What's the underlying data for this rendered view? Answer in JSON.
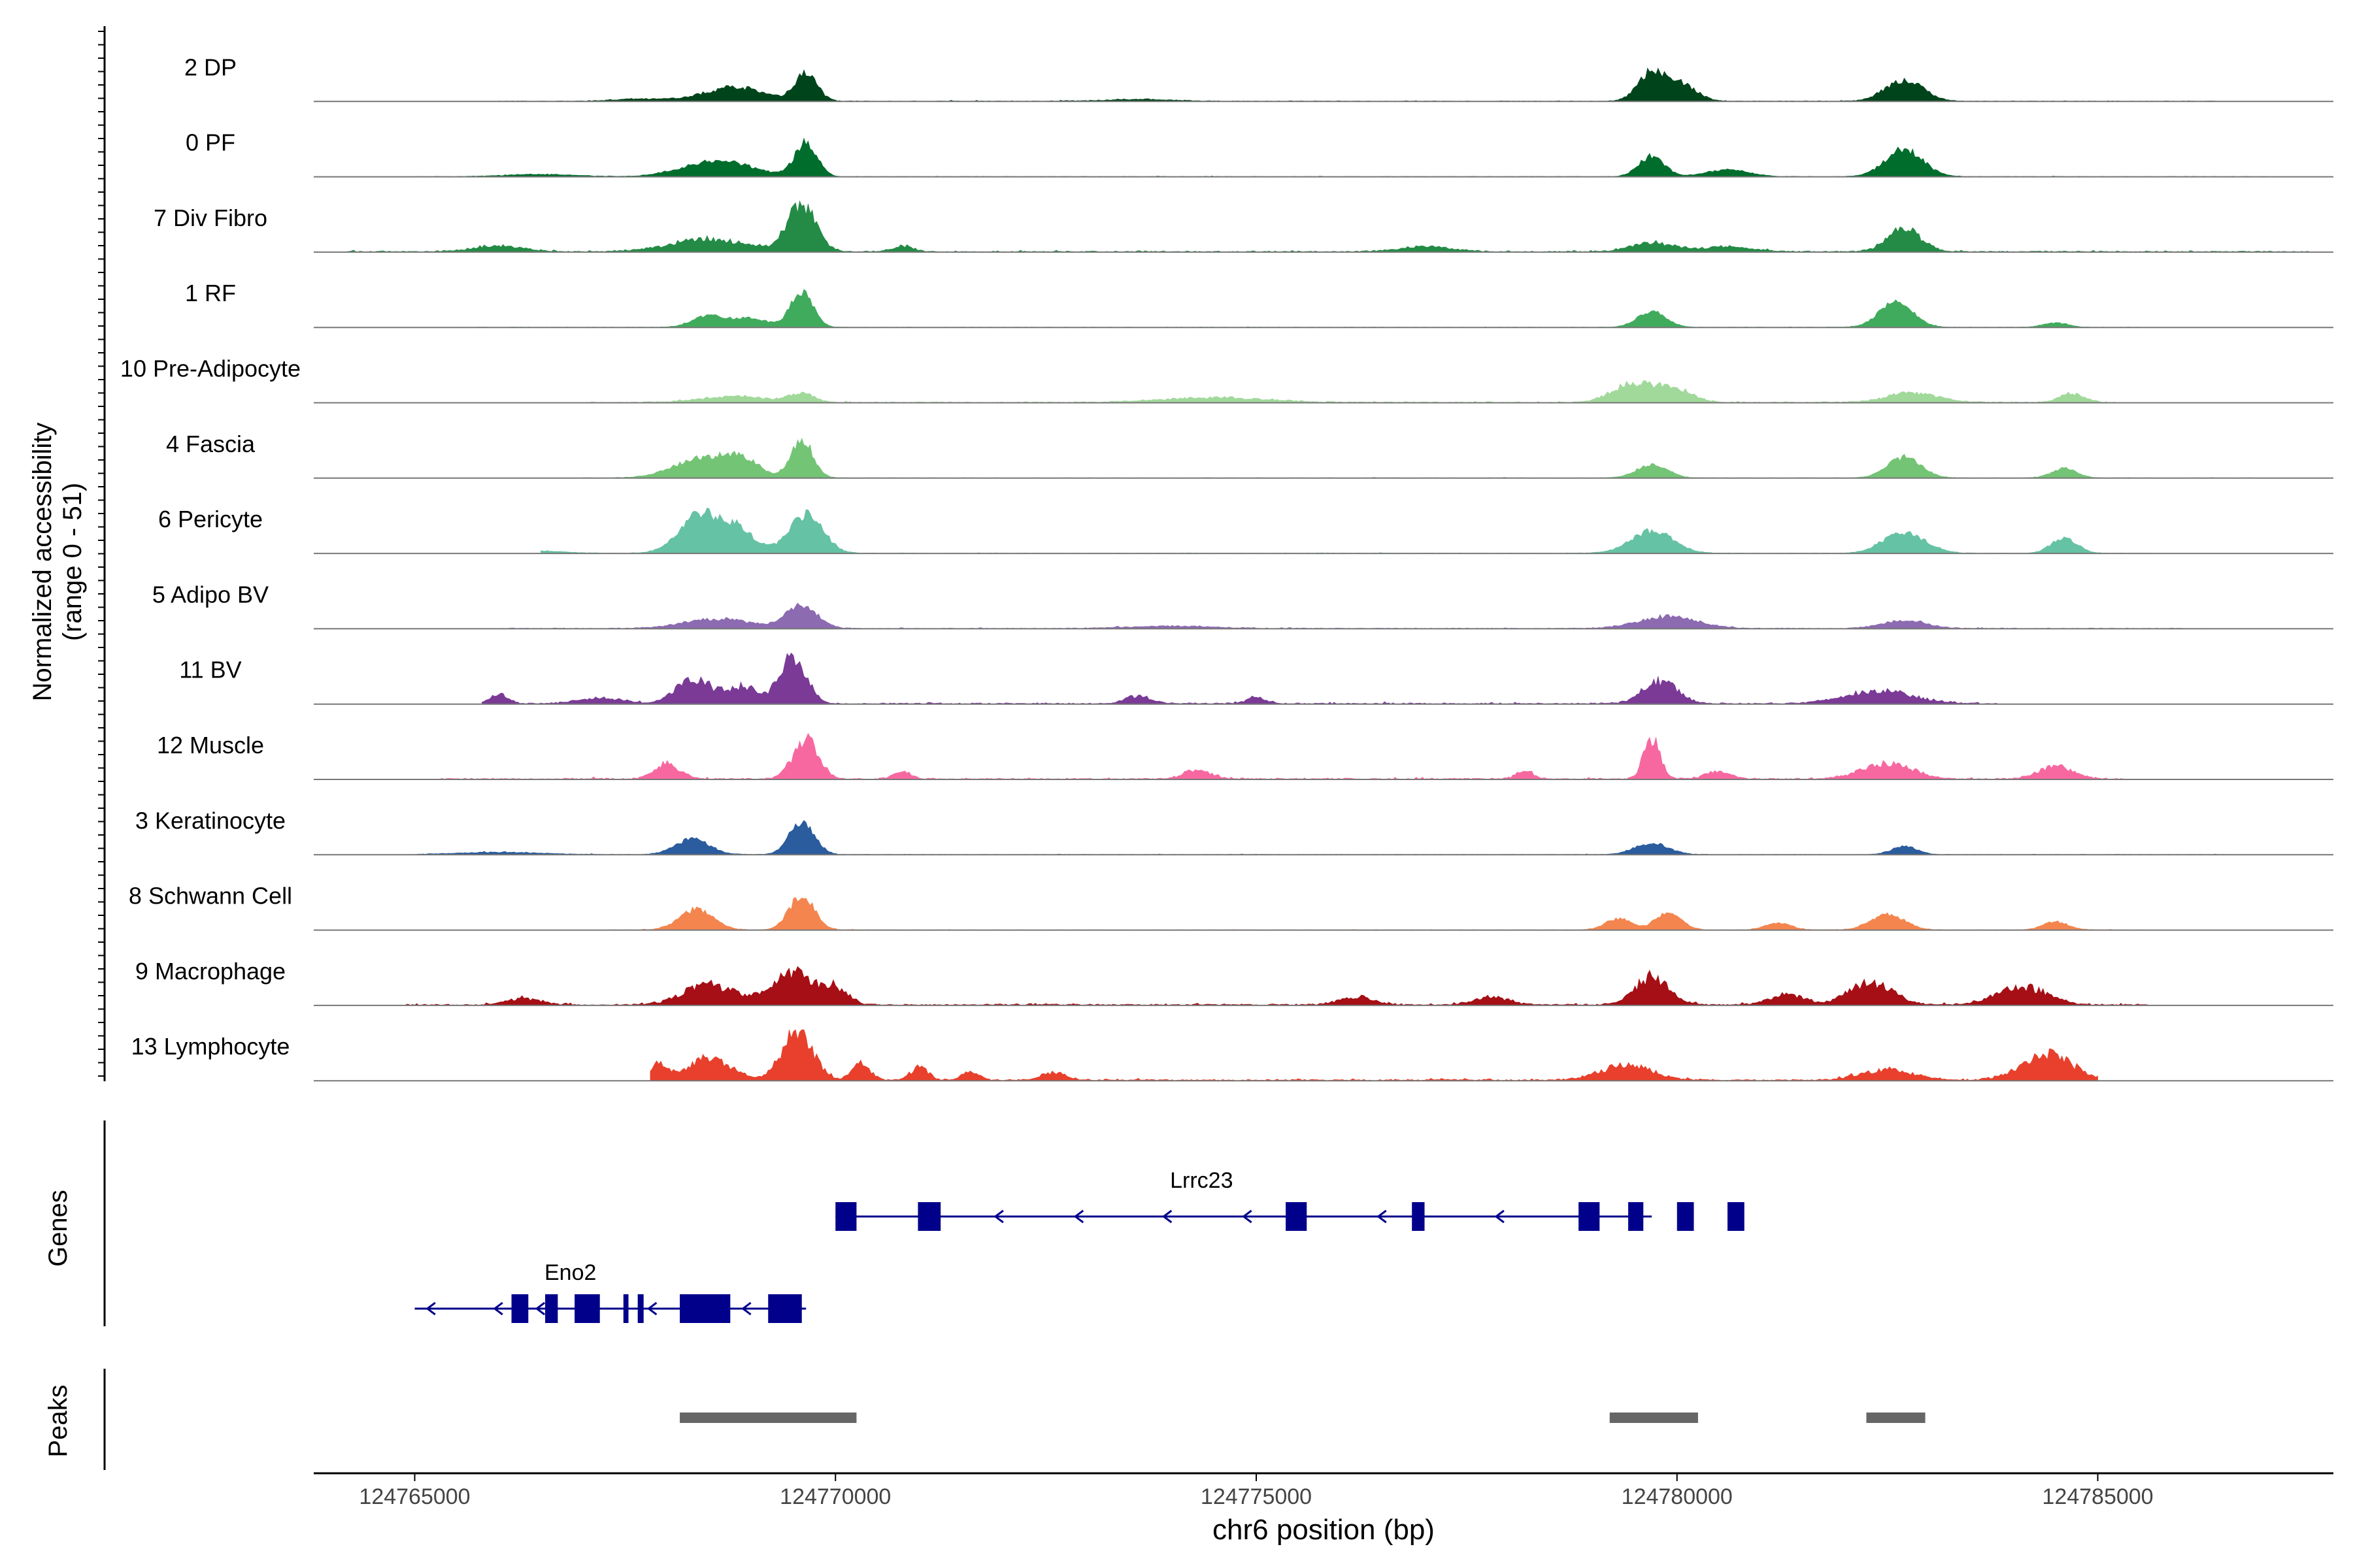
{
  "chart_data": {
    "type": "area",
    "title": "",
    "xlabel": "chr6 position (bp)",
    "ylabel_line1": "Normalized accessibility",
    "ylabel_line2": "(range 0 - 51)",
    "ylim": [
      0,
      51
    ],
    "xlim": [
      124763800,
      124787800
    ],
    "x_ticks": [
      124765000,
      124770000,
      124775000,
      124780000,
      124785000
    ],
    "x_tick_labels": [
      "124765000",
      "124770000",
      "124775000",
      "124780000",
      "124785000"
    ],
    "panel_labels": {
      "genes": "Genes",
      "peaks": "Peaks"
    },
    "tracks": [
      {
        "name": "2 DP",
        "color": "#00441b",
        "lo": 124766000,
        "hi": 124786400,
        "noise": 0.45,
        "peaks": [
          [
            124768800,
            350,
            0.3
          ],
          [
            124769650,
            130,
            0.6
          ],
          [
            124779700,
            160,
            0.6
          ],
          [
            124780050,
            180,
            0.35
          ],
          [
            124782700,
            220,
            0.45
          ],
          [
            124767700,
            300,
            0.05
          ],
          [
            124773600,
            400,
            0.04
          ]
        ]
      },
      {
        "name": "0 PF",
        "color": "#006d2c",
        "lo": 124765000,
        "hi": 124787000,
        "noise": 0.35,
        "peaks": [
          [
            124768600,
            400,
            0.35
          ],
          [
            124769650,
            130,
            0.75
          ],
          [
            124779700,
            150,
            0.45
          ],
          [
            124782700,
            220,
            0.6
          ],
          [
            124780600,
            250,
            0.15
          ],
          [
            124766500,
            400,
            0.05
          ]
        ]
      },
      {
        "name": "7 Div Fibro",
        "color": "#238b45",
        "lo": 124764200,
        "hi": 124787500,
        "noise": 0.7,
        "peaks": [
          [
            124766000,
            300,
            0.12
          ],
          [
            124768500,
            450,
            0.25
          ],
          [
            124769600,
            170,
            0.9
          ],
          [
            124770800,
            120,
            0.12
          ],
          [
            124777000,
            300,
            0.1
          ],
          [
            124779700,
            250,
            0.18
          ],
          [
            124782700,
            200,
            0.45
          ],
          [
            124780600,
            300,
            0.1
          ]
        ]
      },
      {
        "name": "1 RF",
        "color": "#41ab5d",
        "lo": 124765500,
        "hi": 124785500,
        "noise": 0.3,
        "peaks": [
          [
            124768500,
            200,
            0.25
          ],
          [
            124769600,
            130,
            0.8
          ],
          [
            124779700,
            170,
            0.35
          ],
          [
            124782600,
            200,
            0.55
          ],
          [
            124784500,
            150,
            0.1
          ],
          [
            124769000,
            200,
            0.2
          ]
        ]
      },
      {
        "name": "10 Pre-Adipocyte",
        "color": "#a1d99b",
        "lo": 124767000,
        "hi": 124785200,
        "noise": 0.6,
        "peaks": [
          [
            124768800,
            400,
            0.12
          ],
          [
            124774500,
            600,
            0.1
          ],
          [
            124779500,
            250,
            0.4
          ],
          [
            124780000,
            200,
            0.25
          ],
          [
            124782800,
            300,
            0.2
          ],
          [
            124784700,
            150,
            0.18
          ],
          [
            124769600,
            150,
            0.18
          ]
        ]
      },
      {
        "name": "4 Fascia",
        "color": "#74c476",
        "lo": 124767000,
        "hi": 124787000,
        "noise": 0.35,
        "peaks": [
          [
            124768450,
            350,
            0.45
          ],
          [
            124769600,
            130,
            0.85
          ],
          [
            124779700,
            180,
            0.3
          ],
          [
            124782700,
            200,
            0.45
          ],
          [
            124784600,
            150,
            0.2
          ],
          [
            124768900,
            200,
            0.3
          ]
        ]
      },
      {
        "name": "6 Pericyte",
        "color": "#66c2a4",
        "lo": 124766500,
        "hi": 124785600,
        "noise": 0.35,
        "peaks": [
          [
            124768400,
            250,
            0.85
          ],
          [
            124768850,
            200,
            0.45
          ],
          [
            124769650,
            200,
            0.85
          ],
          [
            124779700,
            250,
            0.5
          ],
          [
            124782700,
            250,
            0.45
          ],
          [
            124784600,
            150,
            0.35
          ],
          [
            124766500,
            300,
            0.05
          ]
        ]
      },
      {
        "name": "5 Adipo BV",
        "color": "#8c6bb1",
        "lo": 124766000,
        "hi": 124786300,
        "noise": 0.5,
        "peaks": [
          [
            124768600,
            400,
            0.2
          ],
          [
            124769600,
            180,
            0.5
          ],
          [
            124779900,
            350,
            0.25
          ],
          [
            124782700,
            250,
            0.18
          ],
          [
            124774000,
            500,
            0.05
          ]
        ]
      },
      {
        "name": "11 BV",
        "color": "#7a3a96",
        "lo": 124765800,
        "hi": 124783800,
        "noise": 0.75,
        "peaks": [
          [
            124768300,
            200,
            0.5
          ],
          [
            124768900,
            200,
            0.35
          ],
          [
            124769500,
            150,
            0.95
          ],
          [
            124779800,
            200,
            0.45
          ],
          [
            124782400,
            400,
            0.25
          ],
          [
            124766000,
            100,
            0.18
          ],
          [
            124775000,
            100,
            0.15
          ],
          [
            124767200,
            250,
            0.12
          ],
          [
            124773600,
            150,
            0.15
          ]
        ]
      },
      {
        "name": "12 Muscle",
        "color": "#f768a1",
        "lo": 124765300,
        "hi": 124785300,
        "noise": 0.75,
        "peaks": [
          [
            124768000,
            150,
            0.3
          ],
          [
            124769650,
            150,
            0.8
          ],
          [
            124779700,
            100,
            0.75
          ],
          [
            124782500,
            300,
            0.3
          ],
          [
            124784500,
            200,
            0.25
          ],
          [
            124774300,
            150,
            0.2
          ],
          [
            124770800,
            100,
            0.15
          ],
          [
            124778200,
            100,
            0.15
          ],
          [
            124780500,
            150,
            0.15
          ]
        ]
      },
      {
        "name": "3 Keratinocyte",
        "color": "#2a5c9e",
        "lo": 124765000,
        "hi": 124786500,
        "noise": 0.35,
        "peaks": [
          [
            124768300,
            200,
            0.35
          ],
          [
            124769600,
            150,
            0.7
          ],
          [
            124779700,
            200,
            0.25
          ],
          [
            124782700,
            150,
            0.18
          ],
          [
            124766000,
            500,
            0.05
          ]
        ]
      },
      {
        "name": "8 Schwann Cell",
        "color": "#f4854f",
        "lo": 124767300,
        "hi": 124785500,
        "noise": 0.35,
        "peaks": [
          [
            124768350,
            200,
            0.45
          ],
          [
            124769600,
            150,
            0.75
          ],
          [
            124779300,
            150,
            0.25
          ],
          [
            124779900,
            150,
            0.4
          ],
          [
            124782500,
            200,
            0.35
          ],
          [
            124784500,
            150,
            0.18
          ],
          [
            124781200,
            150,
            0.15
          ]
        ]
      },
      {
        "name": "9 Macrophage",
        "color": "#a50f15",
        "lo": 124764900,
        "hi": 124785600,
        "noise": 0.85,
        "peaks": [
          [
            124768500,
            300,
            0.4
          ],
          [
            124769500,
            250,
            0.6
          ],
          [
            124779700,
            200,
            0.55
          ],
          [
            124782300,
            250,
            0.45
          ],
          [
            124784100,
            300,
            0.35
          ],
          [
            124766300,
            200,
            0.12
          ],
          [
            124777800,
            200,
            0.15
          ],
          [
            124776200,
            200,
            0.15
          ],
          [
            124770000,
            150,
            0.3
          ],
          [
            124781300,
            200,
            0.2
          ]
        ]
      },
      {
        "name": "13 Lymphocyte",
        "color": "#e8402c",
        "lo": 124767800,
        "hi": 124785000,
        "noise": 0.9,
        "peaks": [
          [
            124767900,
            100,
            0.3
          ],
          [
            124768500,
            250,
            0.45
          ],
          [
            124769550,
            180,
            1.0
          ],
          [
            124779400,
            300,
            0.3
          ],
          [
            124782500,
            300,
            0.2
          ],
          [
            124784400,
            300,
            0.5
          ],
          [
            124770300,
            100,
            0.35
          ],
          [
            124771000,
            100,
            0.25
          ],
          [
            124771600,
            100,
            0.15
          ],
          [
            124772600,
            150,
            0.15
          ]
        ]
      }
    ],
    "genes": [
      {
        "name": "Lrrc23",
        "row": 0,
        "start": 124770000,
        "end": 124779700,
        "label_x": 124774350,
        "exons": [
          [
            124770000,
            124770250
          ],
          [
            124770980,
            124771250
          ],
          [
            124775350,
            124775600
          ],
          [
            124776850,
            124777000
          ],
          [
            124778830,
            124779080
          ],
          [
            124779420,
            124779600
          ],
          [
            124780000,
            124780200
          ],
          [
            124780600,
            124780800
          ]
        ],
        "arrows": [
          124771900,
          124772850,
          124773900,
          124774850,
          124776450,
          124777850
        ]
      },
      {
        "name": "Eno2",
        "row": 1,
        "start": 124765000,
        "end": 124769650,
        "label_x": 124766850,
        "exons": [
          [
            124766150,
            124766350
          ],
          [
            124766550,
            124766700
          ],
          [
            124766900,
            124767200
          ],
          [
            124767480,
            124767540
          ],
          [
            124767650,
            124767720
          ],
          [
            124768150,
            124768750
          ],
          [
            124769200,
            124769600
          ]
        ],
        "arrows": [
          124765150,
          124765950,
          124766450,
          124767780,
          124768900
        ]
      }
    ],
    "peaks": [
      [
        124768150,
        124770250
      ],
      [
        124779200,
        124780250
      ],
      [
        124782250,
        124782950
      ]
    ]
  }
}
